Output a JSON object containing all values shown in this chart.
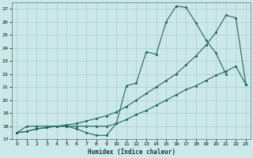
{
  "xlabel": "Humidex (Indice chaleur)",
  "bg_color": "#cce8e8",
  "grid_color": "#aacece",
  "line_color": "#1a6b5a",
  "xlim": [
    -0.5,
    23.5
  ],
  "ylim": [
    17,
    27.5
  ],
  "xticks": [
    0,
    1,
    2,
    3,
    4,
    5,
    6,
    7,
    8,
    9,
    10,
    11,
    12,
    13,
    14,
    15,
    16,
    17,
    18,
    19,
    20,
    21,
    22,
    23
  ],
  "yticks": [
    17,
    18,
    19,
    20,
    21,
    22,
    23,
    24,
    25,
    26,
    27
  ],
  "s1_x": [
    0,
    1,
    2,
    3,
    4,
    5,
    6,
    7,
    8,
    9,
    10,
    11,
    12,
    13,
    14,
    15,
    16,
    17,
    18,
    19,
    20,
    21
  ],
  "s1_y": [
    17.5,
    18.0,
    18.0,
    18.0,
    18.0,
    18.0,
    17.8,
    17.5,
    17.3,
    17.3,
    18.2,
    21.1,
    21.3,
    23.7,
    23.5,
    26.0,
    27.2,
    27.1,
    25.9,
    24.6,
    23.6,
    22.0
  ],
  "s2_x": [
    0,
    1,
    2,
    3,
    4,
    5,
    6,
    7,
    8,
    9,
    10,
    11,
    12,
    13,
    14,
    15,
    16,
    17,
    18,
    19,
    20,
    21,
    22,
    23
  ],
  "s2_y": [
    17.5,
    17.6,
    17.8,
    17.9,
    18.0,
    18.1,
    18.2,
    18.4,
    18.6,
    18.8,
    19.1,
    19.5,
    20.0,
    20.5,
    21.0,
    21.5,
    22.0,
    22.7,
    23.4,
    24.2,
    25.2,
    26.5,
    26.3,
    21.2
  ],
  "s3_x": [
    0,
    1,
    2,
    3,
    4,
    5,
    6,
    7,
    8,
    9,
    10,
    11,
    12,
    13,
    14,
    15,
    16,
    17,
    18,
    19,
    20,
    21,
    22,
    23
  ],
  "s3_y": [
    17.5,
    17.6,
    17.8,
    17.9,
    18.0,
    18.0,
    18.0,
    18.0,
    18.0,
    18.0,
    18.2,
    18.5,
    18.9,
    19.2,
    19.6,
    20.0,
    20.4,
    20.8,
    21.1,
    21.5,
    21.9,
    22.2,
    22.6,
    21.2
  ]
}
